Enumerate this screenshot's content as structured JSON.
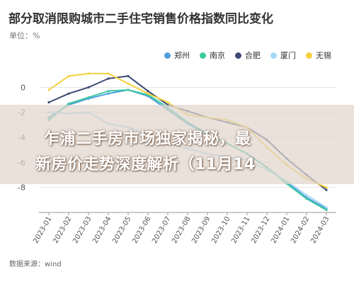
{
  "header": {
    "title": "部分取消限购城市二手住宅销售价格指数同比变化",
    "unit": "单位：%"
  },
  "footer": {
    "source": "数据来源：wind"
  },
  "overlay": {
    "line1": "乍浦二手房市场独家揭秘，最",
    "line2": "新房价走势深度解析（11月14"
  },
  "chart_data": {
    "type": "line",
    "title": "部分取消限购城市二手住宅销售价格指数同比变化",
    "ylabel": "单位：%",
    "xlabel": "",
    "ylim": [
      -10,
      2
    ],
    "y_ticks": [
      0,
      -2,
      -4,
      -6,
      -8
    ],
    "grid": true,
    "legend_position": "top-right",
    "categories": [
      "2023-01",
      "2023-02",
      "2023-03",
      "2023-04",
      "2023-05",
      "2023-06",
      "2023-07",
      "2023-08",
      "2023-09",
      "2023-10",
      "2023-11",
      "2023-12",
      "2024-01",
      "2024-02",
      "2024-03"
    ],
    "series": [
      {
        "name": "郑州",
        "color": "#4e9fe0",
        "values": [
          -2.4,
          -1.4,
          -0.9,
          -0.5,
          -0.2,
          -0.7,
          -1.8,
          -2.9,
          -3.8,
          -4.5,
          -5.3,
          -6.4,
          -7.6,
          -8.8,
          -9.7
        ]
      },
      {
        "name": "南京",
        "color": "#3ec9a0",
        "values": [
          -2.6,
          -1.3,
          -0.8,
          -0.3,
          -0.2,
          -0.6,
          -1.6,
          -2.8,
          -3.7,
          -4.5,
          -5.3,
          -6.4,
          -7.7,
          -8.9,
          -9.8
        ]
      },
      {
        "name": "合肥",
        "color": "#3c4a74",
        "values": [
          -1.2,
          -0.5,
          0.0,
          0.7,
          0.9,
          -0.3,
          -1.4,
          -1.9,
          -2.4,
          -2.8,
          -3.2,
          -4.2,
          -5.7,
          -7.0,
          -8.2
        ]
      },
      {
        "name": "厦门",
        "color": "#a4d9f7",
        "values": [
          -2.0,
          -2.1,
          -2.0,
          -2.9,
          -3.2,
          -3.7,
          -4.5,
          -4.9,
          -5.3,
          -5.6,
          -5.8,
          -6.6,
          -7.5,
          -8.6,
          -9.6
        ]
      },
      {
        "name": "无锡",
        "color": "#f5d13f",
        "values": [
          -0.2,
          0.9,
          1.1,
          1.1,
          0.3,
          -0.5,
          -1.2,
          -2.2,
          -2.4,
          -2.6,
          -3.2,
          -4.8,
          -6.2,
          -7.3,
          -8.0
        ]
      }
    ]
  }
}
